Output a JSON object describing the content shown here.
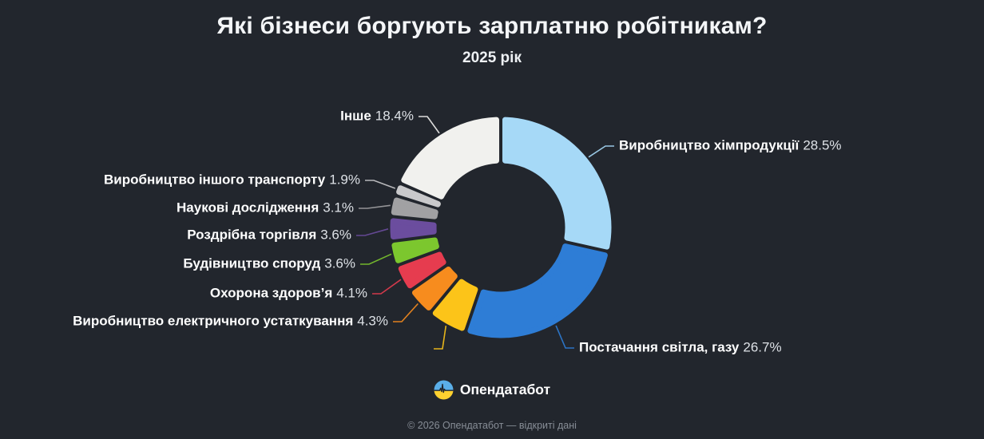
{
  "page": {
    "title": "Які бізнеси боргують зарплатню робітникам?",
    "subtitle": "2025 рік",
    "background_color": "#22262d"
  },
  "chart_data": {
    "type": "pie",
    "variant": "donut",
    "title": "Які бізнеси боргують зарплатню робітникам?",
    "subtitle": "2025 рік",
    "unit": "%",
    "start": "12 o'clock, clockwise",
    "legend_position": "callout labels with leader lines",
    "slices": [
      {
        "id": "chem",
        "label": "Виробництво хімпродукції",
        "value": 28.5,
        "color": "#a6d9f7"
      },
      {
        "id": "power",
        "label": "Постачання світла, газу",
        "value": 26.7,
        "color": "#2e7dd6"
      },
      {
        "id": "unlabeled",
        "label": "",
        "value": 5.8,
        "color": "#fcc419"
      },
      {
        "id": "electrical",
        "label": "Виробництво електричного устаткування",
        "value": 4.3,
        "color": "#f78c1e"
      },
      {
        "id": "health",
        "label": "Охорона здоров’я",
        "value": 4.1,
        "color": "#e63c4f"
      },
      {
        "id": "construction",
        "label": "Будівництво споруд",
        "value": 3.6,
        "color": "#7cc72e"
      },
      {
        "id": "retail",
        "label": "Роздрібна торгівля",
        "value": 3.6,
        "color": "#6b4d9e"
      },
      {
        "id": "research",
        "label": "Наукові дослідження",
        "value": 3.1,
        "color": "#a1a1a3"
      },
      {
        "id": "transport",
        "label": "Виробництво іншого транспорту",
        "value": 1.9,
        "color": "#c9c9cb"
      },
      {
        "id": "other",
        "label": "Інше",
        "value": 18.4,
        "color": "#f1f1ee"
      }
    ]
  },
  "footer": {
    "brand": "Опендатабот",
    "logo_icon": "opendatabot-flag-pulse-icon",
    "logo_colors": {
      "top": "#5aaee8",
      "bottom": "#fed130"
    },
    "copyright": "© 2026 Опендатабот — відкриті дані"
  }
}
